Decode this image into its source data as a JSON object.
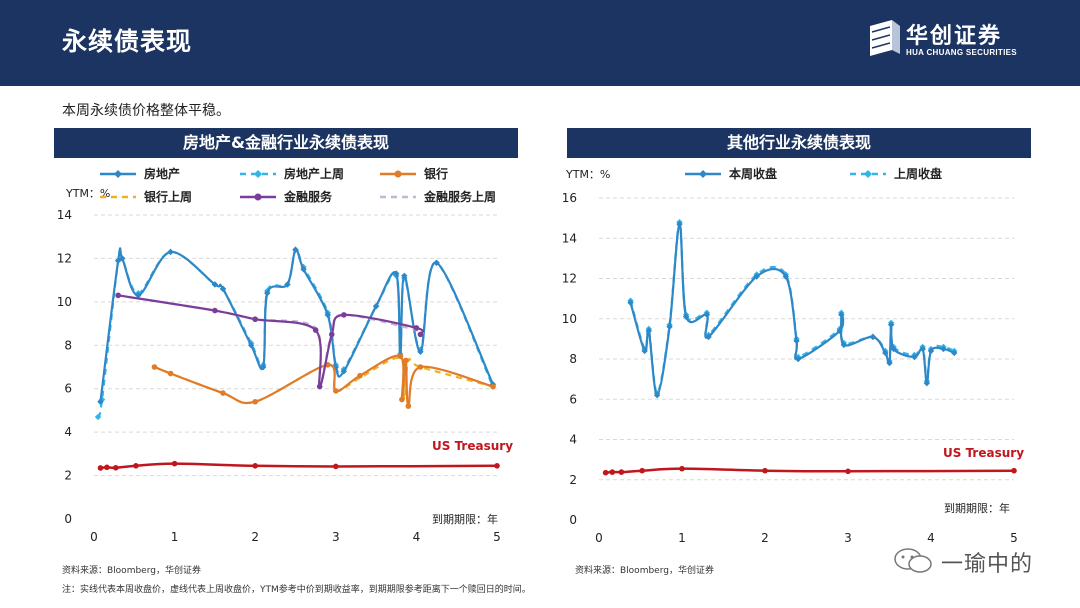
{
  "header": {
    "title": "永续债表现"
  },
  "logo": {
    "cn": "华创证券",
    "en": "HUA CHUANG SECURITIES"
  },
  "subtitle": "本周永续债价格整体平稳。",
  "colors": {
    "navy": "#1c3461",
    "blue": "#2e88c8",
    "light_blue": "#33b5e8",
    "orange": "#e07b27",
    "yellow": "#f0b020",
    "purple": "#7a3d9a",
    "lavender": "#c4b6d6",
    "red": "#c0161e",
    "grid": "#d9d9d9"
  },
  "chart_data": [
    {
      "type": "line",
      "panel_title": "房地产&金融行业永续债表现",
      "ylabel": "YTM：%",
      "xlabel": "到期期限：年",
      "xlim": [
        0,
        5
      ],
      "ylim": [
        0,
        14
      ],
      "xticks": [
        "0",
        "1",
        "2",
        "3",
        "4",
        "5"
      ],
      "yticks": [
        "0",
        "2",
        "4",
        "6",
        "8",
        "10",
        "12",
        "14"
      ],
      "grid": "horizontal-dashed",
      "annotation": "US Treasury",
      "legend": [
        {
          "name": "房地产",
          "style": "solid-diamond",
          "color": "#2e88c8"
        },
        {
          "name": "房地产上周",
          "style": "dashed-diamond",
          "color": "#33b5e8"
        },
        {
          "name": "银行",
          "style": "solid-dot",
          "color": "#e07b27"
        },
        {
          "name": "银行上周",
          "style": "dashed",
          "color": "#f0b020"
        },
        {
          "name": "金融服务",
          "style": "solid-dot",
          "color": "#7a3d9a"
        },
        {
          "name": "金融服务上周",
          "style": "dashed",
          "color": "#c4b6d6"
        }
      ],
      "series": [
        {
          "name": "房地产上周",
          "color": "#33b5e8",
          "dash": true,
          "marker": "diamond",
          "x": [
            0.05,
            0.1,
            0.3,
            0.35,
            0.55,
            0.95,
            1.5,
            1.6,
            1.95,
            2.1,
            2.15,
            2.4,
            2.5,
            2.6,
            2.9,
            3.0,
            3.1,
            3.5,
            3.75,
            3.8,
            3.85,
            4.05,
            4.25,
            4.95
          ],
          "y": [
            4.7,
            5.5,
            11.9,
            12.0,
            10.4,
            12.3,
            10.8,
            10.6,
            8.1,
            7.1,
            10.5,
            10.8,
            12.4,
            11.6,
            9.5,
            7.1,
            6.9,
            9.8,
            11.2,
            7.6,
            11.1,
            7.8,
            11.8,
            6.1
          ]
        },
        {
          "name": "房地产",
          "color": "#2e88c8",
          "dash": false,
          "marker": "diamond",
          "x": [
            0.08,
            0.3,
            0.35,
            0.55,
            0.95,
            1.5,
            1.6,
            1.95,
            2.1,
            2.15,
            2.4,
            2.5,
            2.6,
            2.9,
            3.0,
            3.1,
            3.5,
            3.75,
            3.8,
            3.85,
            4.05,
            4.25,
            4.95
          ],
          "y": [
            5.4,
            11.9,
            12.0,
            10.3,
            12.3,
            10.8,
            10.6,
            8.0,
            7.0,
            10.4,
            10.8,
            12.4,
            11.5,
            9.4,
            7.0,
            6.8,
            9.8,
            11.3,
            7.5,
            11.2,
            7.7,
            11.8,
            6.2
          ]
        },
        {
          "name": "银行上周",
          "color": "#f0b020",
          "dash": true,
          "marker": "none",
          "x": [
            0.75,
            0.95,
            1.6,
            2.0,
            2.9,
            3.0,
            3.3,
            3.8,
            3.85,
            3.9,
            4.05,
            4.95
          ],
          "y": [
            7.0,
            6.7,
            5.8,
            5.4,
            7.1,
            5.9,
            6.5,
            7.4,
            5.5,
            7.3,
            7.0,
            6.1
          ]
        },
        {
          "name": "银行",
          "color": "#e07b27",
          "dash": false,
          "marker": "dot",
          "x": [
            0.75,
            0.95,
            1.6,
            2.0,
            2.9,
            3.0,
            3.3,
            3.8,
            3.82,
            3.87,
            3.9,
            4.05,
            4.95
          ],
          "y": [
            7.0,
            6.7,
            5.8,
            5.4,
            7.1,
            5.9,
            6.6,
            7.5,
            5.5,
            7.3,
            5.2,
            7.0,
            6.1
          ]
        },
        {
          "name": "金融服务上周",
          "color": "#c4b6d6",
          "dash": true,
          "marker": "none",
          "x": [
            0.3,
            1.5,
            2.0,
            2.75,
            2.8,
            2.95,
            3.1,
            4.0,
            4.05
          ],
          "y": [
            10.3,
            9.6,
            9.2,
            8.8,
            6.2,
            8.6,
            9.4,
            8.7,
            8.5
          ]
        },
        {
          "name": "金融服务",
          "color": "#7a3d9a",
          "dash": false,
          "marker": "dot",
          "x": [
            0.3,
            1.5,
            2.0,
            2.75,
            2.8,
            2.95,
            3.1,
            4.0,
            4.05
          ],
          "y": [
            10.3,
            9.6,
            9.2,
            8.7,
            6.1,
            8.5,
            9.4,
            8.8,
            8.5
          ]
        },
        {
          "name": "US Treasury",
          "color": "#c0161e",
          "dash": false,
          "marker": "dot",
          "x": [
            0.08,
            0.16,
            0.27,
            0.52,
            1.0,
            2.0,
            3.0,
            5.0
          ],
          "y": [
            2.35,
            2.38,
            2.36,
            2.45,
            2.55,
            2.45,
            2.42,
            2.45
          ]
        }
      ]
    },
    {
      "type": "line",
      "panel_title": "其他行业永续债表现",
      "ylabel": "YTM：%",
      "xlabel": "到期期限：年",
      "xlim": [
        0,
        5
      ],
      "ylim": [
        0,
        16
      ],
      "xticks": [
        "0",
        "1",
        "2",
        "3",
        "4",
        "5"
      ],
      "yticks": [
        "0",
        "2",
        "4",
        "6",
        "8",
        "10",
        "12",
        "14",
        "16"
      ],
      "grid": "horizontal-dashed",
      "annotation": "US Treasury",
      "legend": [
        {
          "name": "本周收盘",
          "style": "solid-diamond",
          "color": "#2e88c8"
        },
        {
          "name": "上周收盘",
          "style": "dashed-diamond",
          "color": "#33b5e8"
        }
      ],
      "series": [
        {
          "name": "上周收盘",
          "color": "#33b5e8",
          "dash": true,
          "marker": "diamond",
          "x": [
            0.38,
            0.55,
            0.6,
            0.7,
            0.85,
            0.97,
            1.05,
            1.3,
            1.32,
            1.9,
            2.25,
            2.38,
            2.4,
            2.9,
            2.92,
            2.95,
            3.3,
            3.45,
            3.5,
            3.52,
            3.55,
            3.8,
            3.9,
            3.95,
            4.0,
            4.15,
            4.28
          ],
          "y": [
            10.9,
            8.5,
            9.5,
            6.3,
            9.7,
            14.8,
            10.2,
            10.3,
            9.2,
            12.2,
            12.2,
            9.0,
            8.1,
            9.5,
            10.3,
            8.8,
            9.1,
            8.4,
            7.9,
            9.8,
            8.6,
            8.2,
            8.6,
            6.9,
            8.5,
            8.6,
            8.4
          ]
        },
        {
          "name": "本周收盘",
          "color": "#2e88c8",
          "dash": false,
          "marker": "diamond",
          "x": [
            0.38,
            0.55,
            0.6,
            0.7,
            0.85,
            0.97,
            1.05,
            1.3,
            1.32,
            1.9,
            2.25,
            2.38,
            2.4,
            2.9,
            2.92,
            2.95,
            3.3,
            3.45,
            3.5,
            3.52,
            3.55,
            3.8,
            3.9,
            3.95,
            4.0,
            4.15,
            4.28
          ],
          "y": [
            10.8,
            8.4,
            9.4,
            6.2,
            9.6,
            14.7,
            10.1,
            10.2,
            9.1,
            12.1,
            12.1,
            8.9,
            8.0,
            9.4,
            10.2,
            8.7,
            9.1,
            8.3,
            7.8,
            9.7,
            8.5,
            8.1,
            8.5,
            6.8,
            8.4,
            8.5,
            8.3
          ]
        },
        {
          "name": "US Treasury",
          "color": "#c0161e",
          "dash": false,
          "marker": "dot",
          "x": [
            0.08,
            0.16,
            0.27,
            0.52,
            1.0,
            2.0,
            3.0,
            5.0
          ],
          "y": [
            2.35,
            2.38,
            2.38,
            2.45,
            2.55,
            2.45,
            2.42,
            2.45
          ]
        }
      ]
    }
  ],
  "source_left": "资料来源：Bloomberg，华创证券",
  "source_right": "资料来源：Bloomberg，华创证券",
  "footnote": "注：实线代表本周收盘价，虚线代表上周收盘价，YTM参考中价到期收益率，到期期限参考距离下一个赎回日的时间。",
  "watermark": "一瑜中的"
}
